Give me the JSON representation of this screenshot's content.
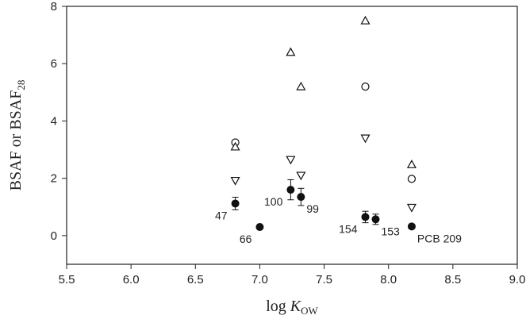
{
  "chart_data": {
    "type": "scatter",
    "title": "",
    "xlim": [
      5.5,
      9.0
    ],
    "ylim": [
      -1,
      8
    ],
    "xticks": [
      5.5,
      6.0,
      6.5,
      7.0,
      7.5,
      8.0,
      8.5,
      9.0
    ],
    "xtick_labels": [
      "5.5",
      "6.0",
      "6.5",
      "7.0",
      "7.5",
      "8.0",
      "8.5",
      "9.0"
    ],
    "yticks": [
      0,
      2,
      4,
      6,
      8
    ],
    "ytick_labels": [
      "0",
      "2",
      "4",
      "6",
      "8"
    ],
    "xlabel": {
      "main": "log ",
      "italic": "K",
      "sub": "OW"
    },
    "ylabel": {
      "main": "BSAF or BSAF",
      "sub": "28"
    },
    "grid": false,
    "legend": "none",
    "series": [
      {
        "marker": "filled-circle",
        "points": [
          {
            "x": 6.81,
            "y": 1.12,
            "err": 0.22
          },
          {
            "x": 7.0,
            "y": 0.3,
            "err": 0.05
          },
          {
            "x": 7.24,
            "y": 1.6,
            "err": 0.35
          },
          {
            "x": 7.32,
            "y": 1.35,
            "err": 0.3
          },
          {
            "x": 7.82,
            "y": 0.65,
            "err": 0.2
          },
          {
            "x": 7.9,
            "y": 0.57,
            "err": 0.18
          },
          {
            "x": 8.18,
            "y": 0.32,
            "err": 0.05
          }
        ]
      },
      {
        "marker": "open-circle",
        "points": [
          {
            "x": 6.81,
            "y": 3.25
          },
          {
            "x": 7.82,
            "y": 5.2
          },
          {
            "x": 8.18,
            "y": 1.98
          }
        ]
      },
      {
        "marker": "open-triangle-up",
        "points": [
          {
            "x": 6.81,
            "y": 3.1
          },
          {
            "x": 7.24,
            "y": 6.4
          },
          {
            "x": 7.32,
            "y": 5.2
          },
          {
            "x": 7.82,
            "y": 7.5
          },
          {
            "x": 8.18,
            "y": 2.48
          }
        ]
      },
      {
        "marker": "open-triangle-down",
        "points": [
          {
            "x": 6.81,
            "y": 1.92
          },
          {
            "x": 7.24,
            "y": 2.65
          },
          {
            "x": 7.32,
            "y": 2.1
          },
          {
            "x": 7.82,
            "y": 3.4
          },
          {
            "x": 8.18,
            "y": 0.98
          }
        ]
      }
    ],
    "annotations": [
      {
        "text": "47",
        "x": 6.81,
        "y": 1.12,
        "anchor": "below-left"
      },
      {
        "text": "66",
        "x": 7.0,
        "y": 0.3,
        "anchor": "below-left"
      },
      {
        "text": "100",
        "x": 7.24,
        "y": 1.6,
        "anchor": "below-left"
      },
      {
        "text": "99",
        "x": 7.32,
        "y": 1.35,
        "anchor": "below-right"
      },
      {
        "text": "154",
        "x": 7.82,
        "y": 0.65,
        "anchor": "below-left"
      },
      {
        "text": "153",
        "x": 7.9,
        "y": 0.57,
        "anchor": "below-right"
      },
      {
        "text": "PCB 209",
        "x": 8.18,
        "y": 0.32,
        "anchor": "below-right"
      }
    ]
  }
}
